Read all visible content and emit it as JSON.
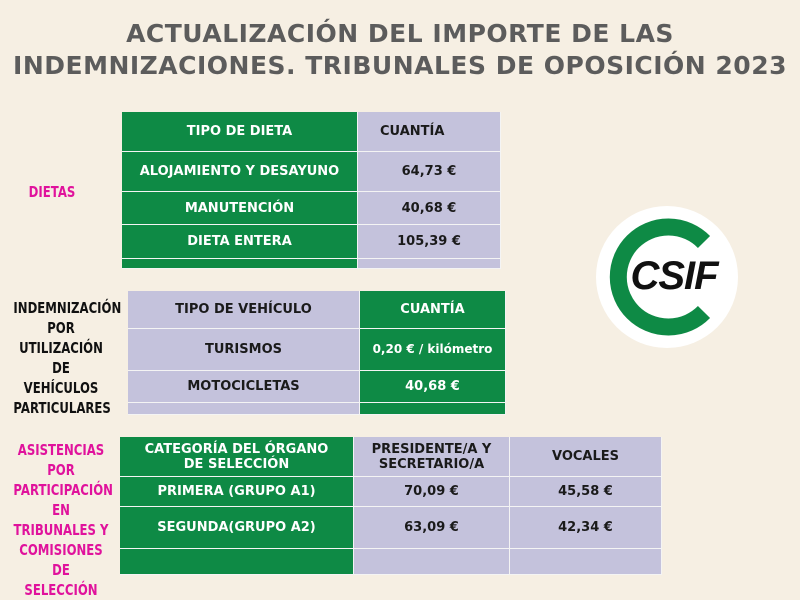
{
  "title": {
    "line1": "ACTUALIZACIÓN DEL IMPORTE DE LAS",
    "line2": "INDEMNIZACIONES. TRIBUNALES DE OPOSICIÓN 2023"
  },
  "dietas": {
    "label": "DIETAS",
    "headers": [
      "TIPO DE DIETA",
      "CUANTÍA"
    ],
    "rows": [
      [
        "ALOJAMIENTO  Y DESAYUNO",
        "64,73 €"
      ],
      [
        "MANUTENCIÓN",
        "40,68 €"
      ],
      [
        "DIETA ENTERA",
        "105,39 €"
      ],
      [
        "",
        ""
      ]
    ]
  },
  "vehiculos": {
    "label_lines": [
      "INDEMNIZACIÓN",
      "POR",
      "UTILIZACIÓN DE",
      "VEHÍCULOS",
      "PARTICULARES"
    ],
    "headers": [
      "TIPO DE VEHÍCULO",
      "CUANTÍA"
    ],
    "rows": [
      [
        "TURISMOS",
        "0,20 € / kilómetro"
      ],
      [
        "MOTOCICLETAS",
        "40,68 €"
      ],
      [
        "",
        ""
      ]
    ]
  },
  "asistencias": {
    "label_lines": [
      "ASISTENCIAS POR",
      "PARTICIPACIÓN EN",
      "TRIBUNALES Y",
      "COMISIONES DE",
      "SELECCIÓN"
    ],
    "headers": [
      "CATEGORÍA DEL ÓRGANO DE SELECCIÓN",
      "PRESIDENTE/A Y SECRETARIO/A",
      "VOCALES"
    ],
    "rows": [
      [
        "PRIMERA (GRUPO A1)",
        "70,09 €",
        "45,58 €"
      ],
      [
        "SEGUNDA(GRUPO A2)",
        "63,09 €",
        "42,34 €"
      ],
      [
        "",
        "",
        ""
      ]
    ]
  },
  "logo": {
    "text": "CSIF",
    "ring_color": "#0e8a45"
  },
  "colors": {
    "green": "#0e8a45",
    "lavender": "#c4c2dc",
    "magenta": "#e0129c",
    "background": "#f6efe3"
  }
}
